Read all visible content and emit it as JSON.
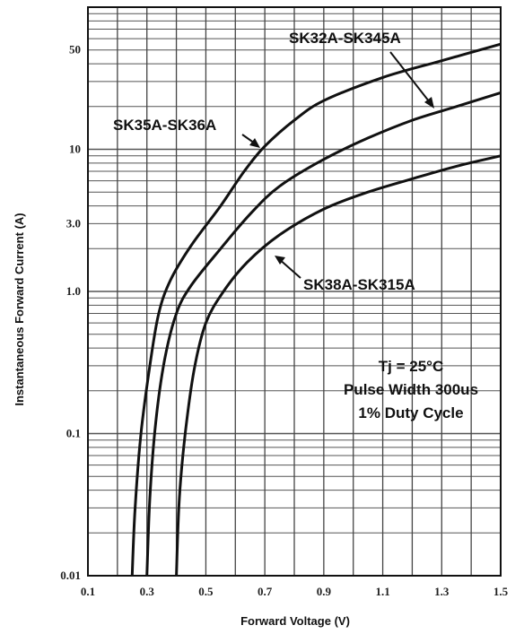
{
  "chart_data": {
    "type": "line",
    "xlabel": "Forward Voltage (V)",
    "ylabel": "Instantaneous Forward Current (A)",
    "xlim": [
      0.1,
      1.5
    ],
    "ylim": [
      0.01,
      100
    ],
    "yscale": "log",
    "x_ticks": [
      "0.1",
      "0.3",
      "0.5",
      "0.7",
      "0.9",
      "1.1",
      "1.3",
      "1.5"
    ],
    "y_ticks": [
      {
        "value": 0.01,
        "label": "0.01"
      },
      {
        "value": 0.1,
        "label": "0.1"
      },
      {
        "value": 1,
        "label": "1.0"
      },
      {
        "value": 3,
        "label": "3.0"
      },
      {
        "value": 10,
        "label": "10"
      },
      {
        "value": 50,
        "label": "50"
      }
    ],
    "grid": true,
    "series": [
      {
        "name": "SK35A-SK36A",
        "points": [
          [
            0.25,
            0.01
          ],
          [
            0.26,
            0.03
          ],
          [
            0.28,
            0.1
          ],
          [
            0.31,
            0.3
          ],
          [
            0.34,
            0.7
          ],
          [
            0.38,
            1.2
          ],
          [
            0.45,
            2.1
          ],
          [
            0.55,
            4
          ],
          [
            0.63,
            7
          ],
          [
            0.7,
            10.5
          ],
          [
            0.8,
            16
          ],
          [
            0.9,
            22
          ],
          [
            1.1,
            32
          ],
          [
            1.3,
            42
          ],
          [
            1.5,
            55
          ]
        ]
      },
      {
        "name": "",
        "points": [
          [
            0.3,
            0.01
          ],
          [
            0.31,
            0.035
          ],
          [
            0.33,
            0.12
          ],
          [
            0.36,
            0.33
          ],
          [
            0.4,
            0.7
          ],
          [
            0.45,
            1.1
          ],
          [
            0.55,
            2
          ],
          [
            0.65,
            3.5
          ],
          [
            0.75,
            5.5
          ],
          [
            0.9,
            8.5
          ],
          [
            1.05,
            12
          ],
          [
            1.2,
            16
          ],
          [
            1.35,
            20
          ],
          [
            1.5,
            25
          ]
        ]
      },
      {
        "name": "SK38A-SK315A",
        "points": [
          [
            0.4,
            0.01
          ],
          [
            0.41,
            0.035
          ],
          [
            0.43,
            0.1
          ],
          [
            0.46,
            0.28
          ],
          [
            0.5,
            0.6
          ],
          [
            0.56,
            1
          ],
          [
            0.64,
            1.6
          ],
          [
            0.75,
            2.5
          ],
          [
            0.9,
            3.8
          ],
          [
            1.05,
            5
          ],
          [
            1.2,
            6.2
          ],
          [
            1.35,
            7.6
          ],
          [
            1.5,
            9
          ]
        ]
      }
    ],
    "annotations": [
      {
        "text": "SK32A-SK345A",
        "points_to_x": 1.17,
        "points_to_y": 24
      },
      {
        "text": "SK35A-SK36A",
        "points_to_x": 0.7,
        "points_to_y": 10.5
      },
      {
        "text": "SK38A-SK315A",
        "points_to_x": 0.8,
        "points_to_y": 2.8
      }
    ],
    "conditions": [
      "Tj = 25°C",
      "Pulse Width 300us",
      "1% Duty Cycle"
    ]
  }
}
